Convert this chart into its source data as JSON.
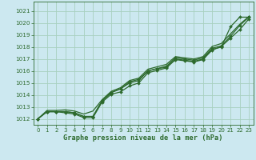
{
  "title": "Graphe pression niveau de la mer (hPa)",
  "bg_color": "#cce8f0",
  "grid_color": "#a8cfc0",
  "line_color": "#2d6a2d",
  "ylim": [
    1011.5,
    1021.8
  ],
  "xlim": [
    -0.5,
    23.5
  ],
  "yticks": [
    1012,
    1013,
    1014,
    1015,
    1016,
    1017,
    1018,
    1019,
    1020,
    1021
  ],
  "xticks": [
    0,
    1,
    2,
    3,
    4,
    5,
    6,
    7,
    8,
    9,
    10,
    11,
    12,
    13,
    14,
    15,
    16,
    17,
    18,
    19,
    20,
    21,
    22,
    23
  ],
  "series": [
    {
      "x": [
        0,
        1,
        2,
        3,
        4,
        5,
        6,
        7,
        8,
        9,
        10,
        11,
        12,
        13,
        14,
        15,
        16,
        17,
        18,
        19,
        20,
        21,
        22,
        23
      ],
      "y": [
        1012.0,
        1012.6,
        1012.6,
        1012.6,
        1012.5,
        1012.2,
        1012.2,
        1013.5,
        1014.2,
        1014.5,
        1015.0,
        1015.2,
        1016.0,
        1016.2,
        1016.3,
        1017.0,
        1016.9,
        1016.8,
        1017.0,
        1017.8,
        1018.0,
        1019.7,
        1020.5,
        1020.5
      ],
      "marker": true,
      "lw": 0.9
    },
    {
      "x": [
        0,
        1,
        2,
        3,
        4,
        5,
        6,
        7,
        8,
        9,
        10,
        11,
        12,
        13,
        14,
        15,
        16,
        17,
        18,
        19,
        20,
        21,
        22,
        23
      ],
      "y": [
        1012.0,
        1012.6,
        1012.6,
        1012.5,
        1012.4,
        1012.1,
        1012.1,
        1013.4,
        1014.05,
        1014.25,
        1014.75,
        1015.0,
        1015.85,
        1016.05,
        1016.25,
        1016.95,
        1016.85,
        1016.75,
        1016.95,
        1017.75,
        1018.05,
        1018.75,
        1019.45,
        1020.35
      ],
      "marker": true,
      "lw": 0.9
    },
    {
      "x": [
        0,
        1,
        2,
        3,
        4,
        5,
        6,
        7,
        8,
        9,
        10,
        11,
        12,
        13,
        14,
        15,
        16,
        17,
        18,
        19,
        20,
        21,
        22,
        23
      ],
      "y": [
        1012.0,
        1012.6,
        1012.6,
        1012.6,
        1012.5,
        1012.2,
        1012.2,
        1013.5,
        1014.2,
        1014.5,
        1015.1,
        1015.3,
        1016.0,
        1016.2,
        1016.4,
        1017.1,
        1017.0,
        1016.9,
        1017.1,
        1017.9,
        1018.1,
        1018.9,
        1019.8,
        1020.5
      ],
      "marker": true,
      "lw": 0.9
    },
    {
      "x": [
        0,
        1,
        2,
        3,
        4,
        5,
        6,
        7,
        8,
        9,
        10,
        11,
        12,
        13,
        14,
        15,
        16,
        17,
        18,
        19,
        20,
        21,
        22,
        23
      ],
      "y": [
        1012.0,
        1012.7,
        1012.7,
        1012.75,
        1012.65,
        1012.4,
        1012.65,
        1013.6,
        1014.3,
        1014.6,
        1015.2,
        1015.4,
        1016.15,
        1016.35,
        1016.55,
        1017.2,
        1017.1,
        1017.0,
        1017.2,
        1018.05,
        1018.3,
        1019.1,
        1019.9,
        1020.55
      ],
      "marker": false,
      "lw": 0.9
    }
  ]
}
